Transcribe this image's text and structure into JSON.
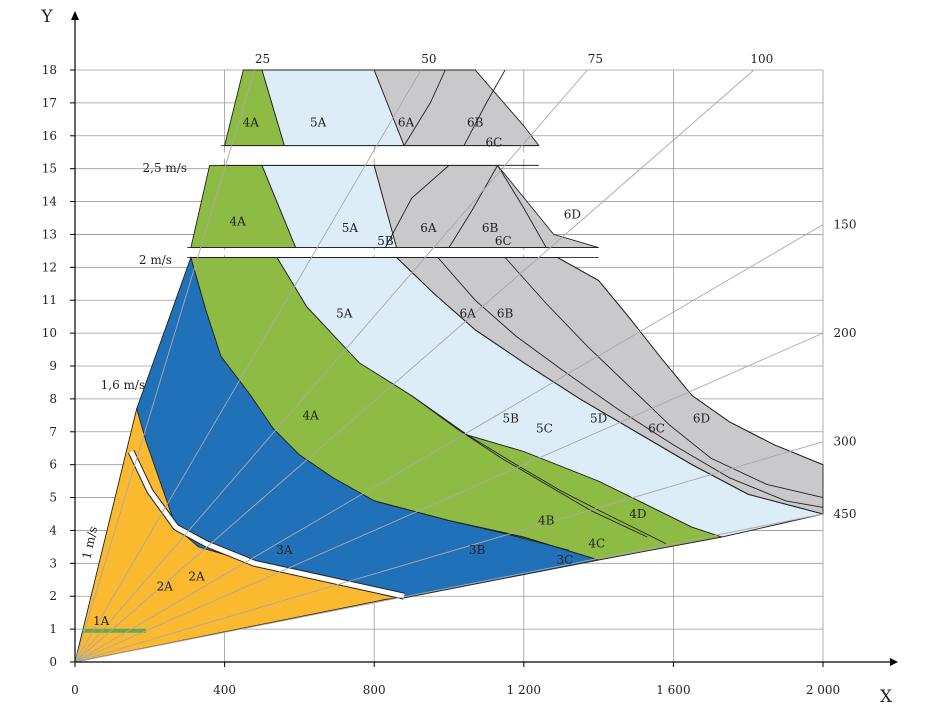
{
  "chart_data": {
    "type": "area",
    "title": "",
    "xlabel": "X",
    "ylabel": "Y",
    "xlim": [
      0,
      2000
    ],
    "ylim": [
      0,
      18
    ],
    "grid": true,
    "x_ticks": [
      {
        "value": 0,
        "label": "0"
      },
      {
        "value": 400,
        "label": "400"
      },
      {
        "value": 800,
        "label": "800"
      },
      {
        "value": 1200,
        "label": "1 200"
      },
      {
        "value": 1600,
        "label": "1 600"
      },
      {
        "value": 2000,
        "label": "2 000"
      }
    ],
    "y_ticks": [
      {
        "value": 0,
        "label": "0"
      },
      {
        "value": 1,
        "label": "1"
      },
      {
        "value": 2,
        "label": "2"
      },
      {
        "value": 3,
        "label": "3"
      },
      {
        "value": 4,
        "label": "4"
      },
      {
        "value": 5,
        "label": "5"
      },
      {
        "value": 6,
        "label": "6"
      },
      {
        "value": 7,
        "label": "7"
      },
      {
        "value": 8,
        "label": "8"
      },
      {
        "value": 9,
        "label": "9"
      },
      {
        "value": 10,
        "label": "10"
      },
      {
        "value": 11,
        "label": "11"
      },
      {
        "value": 12,
        "label": "12"
      },
      {
        "value": 13,
        "label": "13"
      },
      {
        "value": 14,
        "label": "14"
      },
      {
        "value": 15,
        "label": "15"
      },
      {
        "value": 16,
        "label": "16"
      },
      {
        "value": 17,
        "label": "17"
      },
      {
        "value": 18,
        "label": "18"
      }
    ],
    "colors": {
      "zone1_2": "#fbb92f",
      "zone3": "#2171b8",
      "zone4": "#8dbb43",
      "zone5": "#dcedf8",
      "zone6": "#c9c9cb",
      "grid": "#9a9a9a",
      "ray": "#a9a9a9",
      "outline": "#222222",
      "separator": "#ffffff",
      "marker_1A": "#6aa84f"
    },
    "speed_labels": [
      {
        "label": "2,5 m/s",
        "x": 240,
        "y": 14.9
      },
      {
        "label": "2 m/s",
        "x": 215,
        "y": 12.1
      },
      {
        "label": "1,6 m/s",
        "x": 128,
        "y": 8.3
      },
      {
        "label": "1 m/s",
        "x": 50,
        "y": 3.6,
        "rotate": -78
      }
    ],
    "rays": [
      {
        "label": "25",
        "x": 480,
        "y": 18
      },
      {
        "label": "50",
        "x": 925,
        "y": 18
      },
      {
        "label": "75",
        "x": 1370,
        "y": 18
      },
      {
        "label": "100",
        "x": 1815,
        "y": 18
      },
      {
        "label": "150",
        "x": 2000,
        "y": 13.3
      },
      {
        "label": "200",
        "x": 2000,
        "y": 10
      },
      {
        "label": "300",
        "x": 2000,
        "y": 6.7
      },
      {
        "label": "450",
        "x": 2000,
        "y": 4.5
      }
    ],
    "regions": [
      {
        "name": "1",
        "color": "zone1_2",
        "points": [
          [
            0,
            0
          ],
          [
            165,
            7.7
          ],
          [
            210,
            6.9
          ],
          [
            280,
            4.1
          ],
          [
            350,
            3.6
          ],
          [
            480,
            3
          ],
          [
            900,
            2
          ],
          [
            830,
            1.9
          ],
          [
            0,
            0
          ]
        ]
      },
      {
        "name": "3",
        "color": "zone3",
        "points": [
          [
            165,
            7.7
          ],
          [
            310,
            12.3
          ],
          [
            350,
            10.7
          ],
          [
            390,
            9.3
          ],
          [
            470,
            8.1
          ],
          [
            530,
            7.1
          ],
          [
            600,
            6.3
          ],
          [
            690,
            5.6
          ],
          [
            800,
            4.9
          ],
          [
            1000,
            4.3
          ],
          [
            1200,
            3.8
          ],
          [
            1400,
            3.1
          ],
          [
            880,
            1.95
          ],
          [
            480,
            3
          ],
          [
            330,
            3.5
          ],
          [
            270,
            4.1
          ],
          [
            190,
            6.7
          ],
          [
            165,
            7.7
          ]
        ]
      },
      {
        "name": "4",
        "color": "zone4",
        "points": [
          [
            310,
            12.3
          ],
          [
            540,
            12.3
          ],
          [
            620,
            10.8
          ],
          [
            760,
            9.1
          ],
          [
            900,
            8.1
          ],
          [
            1050,
            6.9
          ],
          [
            1200,
            6.4
          ],
          [
            1400,
            5.5
          ],
          [
            1650,
            4.1
          ],
          [
            1730,
            3.8
          ],
          [
            1400,
            3.1
          ],
          [
            1200,
            3.8
          ],
          [
            1000,
            4.3
          ],
          [
            800,
            4.9
          ],
          [
            690,
            5.6
          ],
          [
            600,
            6.3
          ],
          [
            530,
            7.1
          ],
          [
            470,
            8.1
          ],
          [
            390,
            9.3
          ],
          [
            350,
            10.7
          ],
          [
            310,
            12.3
          ]
        ]
      },
      {
        "name": "5_low",
        "color": "zone5",
        "points": [
          [
            540,
            12.3
          ],
          [
            860,
            12.3
          ],
          [
            960,
            11.2
          ],
          [
            1070,
            10.1
          ],
          [
            1200,
            9.1
          ],
          [
            1350,
            8.0
          ],
          [
            1500,
            7.0
          ],
          [
            1650,
            6.0
          ],
          [
            1800,
            5.1
          ],
          [
            2000,
            4.5
          ],
          [
            1730,
            3.8
          ],
          [
            1650,
            4.1
          ],
          [
            1400,
            5.5
          ],
          [
            1200,
            6.4
          ],
          [
            1050,
            6.9
          ],
          [
            900,
            8.1
          ],
          [
            760,
            9.1
          ],
          [
            620,
            10.8
          ],
          [
            540,
            12.3
          ]
        ]
      },
      {
        "name": "6_low",
        "color": "zone6",
        "points": [
          [
            860,
            12.3
          ],
          [
            1290,
            12.3
          ],
          [
            1400,
            11.6
          ],
          [
            1480,
            10.5
          ],
          [
            1570,
            9.2
          ],
          [
            1650,
            8.1
          ],
          [
            1750,
            7.3
          ],
          [
            1870,
            6.6
          ],
          [
            2000,
            6.0
          ],
          [
            2000,
            4.5
          ],
          [
            1800,
            5.1
          ],
          [
            1650,
            6.0
          ],
          [
            1500,
            7.0
          ],
          [
            1350,
            8.0
          ],
          [
            1200,
            9.1
          ],
          [
            1070,
            10.1
          ],
          [
            960,
            11.2
          ],
          [
            860,
            12.3
          ]
        ]
      },
      {
        "name": "4_mid",
        "color": "zone4",
        "points": [
          [
            310,
            12.6
          ],
          [
            360,
            15.1
          ],
          [
            500,
            15.1
          ],
          [
            590,
            12.6
          ],
          [
            310,
            12.6
          ]
        ]
      },
      {
        "name": "5_mid",
        "color": "zone5",
        "points": [
          [
            500,
            15.1
          ],
          [
            800,
            15.1
          ],
          [
            860,
            12.6
          ],
          [
            590,
            12.6
          ],
          [
            500,
            15.1
          ]
        ]
      },
      {
        "name": "6_mid",
        "color": "zone6",
        "points": [
          [
            800,
            15.1
          ],
          [
            1130,
            15.1
          ],
          [
            1280,
            13.0
          ],
          [
            1400,
            12.6
          ],
          [
            860,
            12.6
          ],
          [
            800,
            15.1
          ]
        ]
      },
      {
        "name": "4_top",
        "color": "zone4",
        "points": [
          [
            400,
            15.7
          ],
          [
            450,
            18
          ],
          [
            500,
            18
          ],
          [
            560,
            15.7
          ],
          [
            400,
            15.7
          ]
        ]
      },
      {
        "name": "5_top",
        "color": "zone5",
        "points": [
          [
            500,
            18
          ],
          [
            800,
            18
          ],
          [
            880,
            15.7
          ],
          [
            560,
            15.7
          ],
          [
            500,
            18
          ]
        ]
      },
      {
        "name": "6_top",
        "color": "zone6",
        "points": [
          [
            800,
            18
          ],
          [
            1070,
            18
          ],
          [
            1200,
            16.3
          ],
          [
            1240,
            15.7
          ],
          [
            880,
            15.7
          ],
          [
            800,
            18
          ]
        ]
      }
    ],
    "boundary_lines": [
      [
        [
          860,
          12.3
        ],
        [
          960,
          11.2
        ],
        [
          1070,
          10.1
        ],
        [
          1200,
          9.1
        ],
        [
          1350,
          8.0
        ],
        [
          1500,
          7.0
        ],
        [
          1650,
          6.0
        ],
        [
          1800,
          5.1
        ],
        [
          2000,
          4.5
        ]
      ],
      [
        [
          970,
          12.3
        ],
        [
          1070,
          11.0
        ],
        [
          1180,
          9.9
        ],
        [
          1300,
          8.9
        ],
        [
          1450,
          7.7
        ],
        [
          1600,
          6.6
        ],
        [
          1750,
          5.6
        ],
        [
          1900,
          4.9
        ],
        [
          2000,
          4.7
        ]
      ],
      [
        [
          1150,
          12.3
        ],
        [
          1260,
          10.9
        ],
        [
          1370,
          9.6
        ],
        [
          1480,
          8.4
        ],
        [
          1590,
          7.2
        ],
        [
          1700,
          6.2
        ],
        [
          1850,
          5.4
        ],
        [
          2000,
          5.0
        ]
      ],
      [
        [
          1290,
          12.3
        ],
        [
          1400,
          11.6
        ],
        [
          1480,
          10.5
        ],
        [
          1570,
          9.2
        ],
        [
          1650,
          8.1
        ],
        [
          1750,
          7.3
        ],
        [
          1870,
          6.6
        ],
        [
          2000,
          6.0
        ]
      ],
      [
        [
          900,
          8.1
        ],
        [
          1020,
          7.1
        ],
        [
          1140,
          6.2
        ],
        [
          1260,
          5.4
        ],
        [
          1380,
          4.6
        ],
        [
          1530,
          3.8
        ]
      ],
      [
        [
          1050,
          6.9
        ],
        [
          1180,
          6.0
        ],
        [
          1300,
          5.2
        ],
        [
          1420,
          4.5
        ],
        [
          1580,
          3.6
        ]
      ],
      [
        [
          800,
          4.9
        ],
        [
          1000,
          4.3
        ],
        [
          1200,
          3.8
        ],
        [
          1400,
          3.1
        ]
      ],
      [
        [
          1000,
          4.3
        ],
        [
          1150,
          3.9
        ],
        [
          1320,
          3.4
        ]
      ],
      [
        [
          830,
          12.6
        ],
        [
          900,
          14.1
        ],
        [
          1000,
          15.1
        ]
      ],
      [
        [
          1000,
          12.6
        ],
        [
          1060,
          13.7
        ],
        [
          1130,
          15.1
        ]
      ],
      [
        [
          1130,
          15.1
        ],
        [
          1200,
          13.8
        ],
        [
          1260,
          12.6
        ]
      ],
      [
        [
          880,
          15.7
        ],
        [
          950,
          17.0
        ],
        [
          990,
          18
        ]
      ],
      [
        [
          1040,
          15.7
        ],
        [
          1100,
          17.0
        ],
        [
          1150,
          18
        ]
      ]
    ],
    "zone_labels": [
      {
        "label": "1A",
        "x": 70,
        "y": 1.25
      },
      {
        "label": "2A",
        "x": 240,
        "y": 2.3
      },
      {
        "label": "2A",
        "x": 325,
        "y": 2.6
      },
      {
        "label": "3A",
        "x": 560,
        "y": 3.4
      },
      {
        "label": "3B",
        "x": 1075,
        "y": 3.4
      },
      {
        "label": "3C",
        "x": 1310,
        "y": 3.1
      },
      {
        "label": "4A",
        "x": 630,
        "y": 7.5
      },
      {
        "label": "4B",
        "x": 1260,
        "y": 4.3
      },
      {
        "label": "4C",
        "x": 1395,
        "y": 3.6
      },
      {
        "label": "4D",
        "x": 1505,
        "y": 4.5
      },
      {
        "label": "4A",
        "x": 435,
        "y": 13.4
      },
      {
        "label": "4A",
        "x": 470,
        "y": 16.4
      },
      {
        "label": "5A",
        "x": 720,
        "y": 10.6
      },
      {
        "label": "5A",
        "x": 735,
        "y": 13.2
      },
      {
        "label": "5A",
        "x": 650,
        "y": 16.4
      },
      {
        "label": "5B",
        "x": 830,
        "y": 12.8
      },
      {
        "label": "5B",
        "x": 1165,
        "y": 7.4
      },
      {
        "label": "5C",
        "x": 1255,
        "y": 7.1
      },
      {
        "label": "5D",
        "x": 1400,
        "y": 7.4
      },
      {
        "label": "6A",
        "x": 1050,
        "y": 10.6
      },
      {
        "label": "6B",
        "x": 1150,
        "y": 10.6
      },
      {
        "label": "6A",
        "x": 945,
        "y": 13.2
      },
      {
        "label": "6B",
        "x": 1110,
        "y": 13.2
      },
      {
        "label": "6C",
        "x": 1145,
        "y": 12.8
      },
      {
        "label": "6D",
        "x": 1330,
        "y": 13.6
      },
      {
        "label": "6A",
        "x": 885,
        "y": 16.4
      },
      {
        "label": "6B",
        "x": 1070,
        "y": 16.4
      },
      {
        "label": "6C",
        "x": 1120,
        "y": 15.8
      },
      {
        "label": "6C",
        "x": 1555,
        "y": 7.1
      },
      {
        "label": "6D",
        "x": 1675,
        "y": 7.4
      }
    ]
  }
}
